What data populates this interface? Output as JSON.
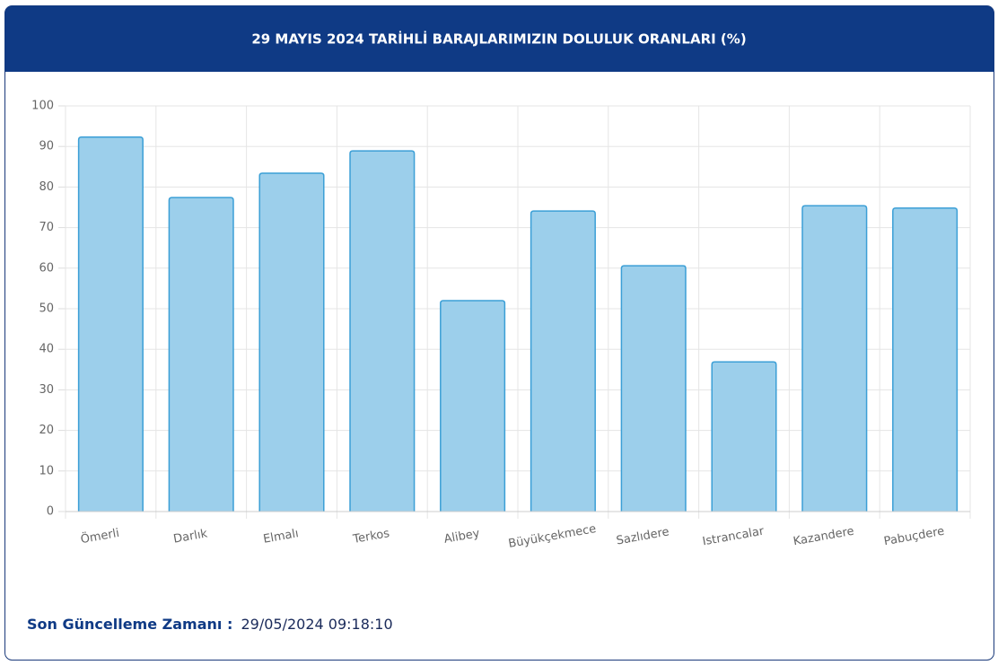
{
  "chart_data": {
    "type": "bar",
    "title": "29 MAYIS 2024 TARİHLİ BARAJLARIMIZIN DOLULUK ORANLARI (%)",
    "categories": [
      "Ömerli",
      "Darlık",
      "Elmalı",
      "Terkos",
      "Alibey",
      "Büyükçekmece",
      "Sazlıdere",
      "Istrancalar",
      "Kazandere",
      "Pabuçdere"
    ],
    "values": [
      92.3,
      77.4,
      83.4,
      88.9,
      52.0,
      74.1,
      60.6,
      36.9,
      75.4,
      74.8
    ],
    "color": "#9ccfeb",
    "border_color": "#3b9fd6",
    "ylim": [
      0,
      100
    ],
    "yticks": [
      0,
      10,
      20,
      30,
      40,
      50,
      60,
      70,
      80,
      90,
      100
    ],
    "grid": true
  },
  "footer": {
    "label": "Son Güncelleme Zamanı :",
    "value": "29/05/2024 09:18:10"
  }
}
